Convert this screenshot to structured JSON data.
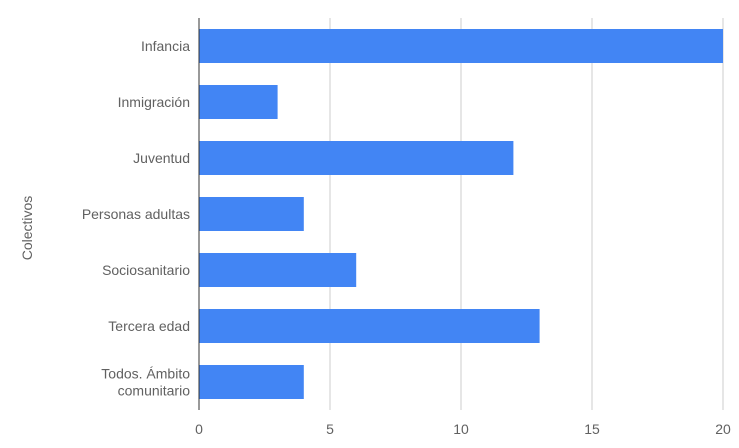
{
  "chart_data": {
    "type": "bar",
    "orientation": "horizontal",
    "categories": [
      "Infancia",
      "Inmigración",
      "Juventud",
      "Personas adultas",
      "Sociosanitario",
      "Tercera edad",
      "Todos. Ámbito comunitario"
    ],
    "category_lines": [
      [
        "Infancia"
      ],
      [
        "Inmigración"
      ],
      [
        "Juventud"
      ],
      [
        "Personas adultas"
      ],
      [
        "Sociosanitario"
      ],
      [
        "Tercera edad"
      ],
      [
        "Todos. Ámbito",
        "comunitario"
      ]
    ],
    "values": [
      20,
      3,
      12,
      4,
      6,
      13,
      4
    ],
    "xlim": [
      0,
      20
    ],
    "xticks": [
      "0",
      "5",
      "10",
      "15",
      "20"
    ],
    "xlabel": "",
    "ylabel": "Colectivos",
    "title": "",
    "grid": "vertical",
    "legend": "none",
    "bar_color": "#4285f4"
  }
}
